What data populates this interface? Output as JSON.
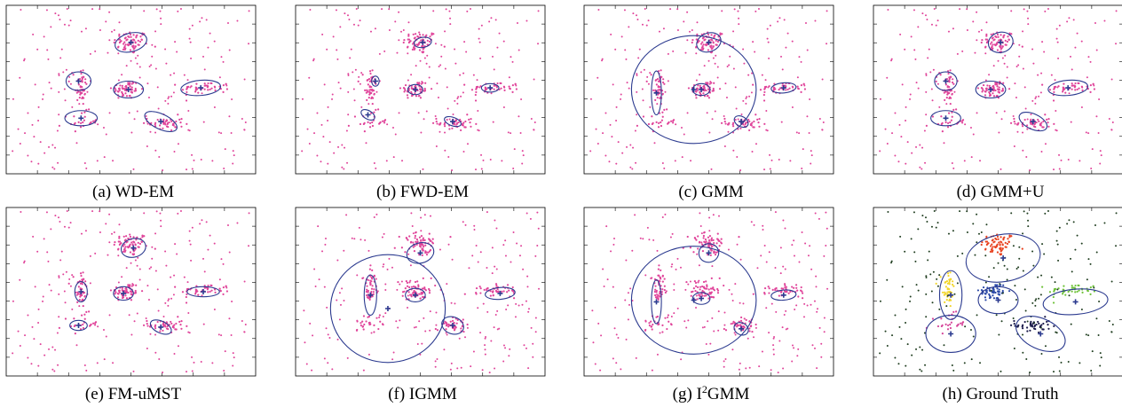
{
  "figure": {
    "captions": [
      "(a) WD-EM",
      "(b) FWD-EM",
      "(c) GMM",
      "(d) GMM+U",
      "(e) FM-uMST",
      "(f) IGMM",
      "(g) I2GMM",
      "(h) Ground Truth"
    ]
  },
  "colors": {
    "points": "#e0449a",
    "ellipse": "#2b3a8f",
    "center": "#2b3a8f",
    "frame": "#000000",
    "gt_noise": "#1f3d1f",
    "gt_red": "#e8411e",
    "gt_yellow": "#f2d52a",
    "gt_magenta": "#d6479a",
    "gt_blue": "#2c4aa8",
    "gt_green": "#6fc23a",
    "gt_navy": "#1a1a4a"
  },
  "chart_data": [
    {
      "type": "scatter",
      "caption": "(a) WD-EM",
      "xlim": [
        0,
        1
      ],
      "ylim": [
        0,
        1
      ],
      "clusters": [
        {
          "cx": 0.5,
          "cy": 0.78,
          "rx": 0.065,
          "ry": 0.055,
          "angle": -15
        },
        {
          "cx": 0.29,
          "cy": 0.55,
          "rx": 0.05,
          "ry": 0.055,
          "angle": 0
        },
        {
          "cx": 0.49,
          "cy": 0.5,
          "rx": 0.06,
          "ry": 0.05,
          "angle": 0
        },
        {
          "cx": 0.78,
          "cy": 0.51,
          "rx": 0.08,
          "ry": 0.045,
          "angle": -5
        },
        {
          "cx": 0.3,
          "cy": 0.33,
          "rx": 0.065,
          "ry": 0.045,
          "angle": 0
        },
        {
          "cx": 0.62,
          "cy": 0.31,
          "rx": 0.07,
          "ry": 0.045,
          "angle": 25
        }
      ]
    },
    {
      "type": "scatter",
      "caption": "(b) FWD-EM",
      "xlim": [
        0,
        1
      ],
      "ylim": [
        0,
        1
      ],
      "clusters": [
        {
          "cx": 0.51,
          "cy": 0.78,
          "rx": 0.035,
          "ry": 0.03,
          "angle": -10
        },
        {
          "cx": 0.32,
          "cy": 0.55,
          "rx": 0.015,
          "ry": 0.03,
          "angle": 0
        },
        {
          "cx": 0.48,
          "cy": 0.5,
          "rx": 0.03,
          "ry": 0.03,
          "angle": 0
        },
        {
          "cx": 0.78,
          "cy": 0.51,
          "rx": 0.035,
          "ry": 0.025,
          "angle": 0
        },
        {
          "cx": 0.29,
          "cy": 0.35,
          "rx": 0.03,
          "ry": 0.025,
          "angle": 30
        },
        {
          "cx": 0.63,
          "cy": 0.31,
          "rx": 0.035,
          "ry": 0.025,
          "angle": 20
        }
      ]
    },
    {
      "type": "scatter",
      "caption": "(c) GMM",
      "xlim": [
        0,
        1
      ],
      "ylim": [
        0,
        1
      ],
      "clusters": [
        {
          "cx": 0.5,
          "cy": 0.78,
          "rx": 0.05,
          "ry": 0.055,
          "angle": -20
        },
        {
          "cx": 0.44,
          "cy": 0.5,
          "rx": 0.25,
          "ry": 0.32,
          "angle": 0
        },
        {
          "cx": 0.29,
          "cy": 0.48,
          "rx": 0.02,
          "ry": 0.13,
          "angle": 0
        },
        {
          "cx": 0.47,
          "cy": 0.5,
          "rx": 0.035,
          "ry": 0.035,
          "angle": 0
        },
        {
          "cx": 0.8,
          "cy": 0.51,
          "rx": 0.05,
          "ry": 0.03,
          "angle": -5
        },
        {
          "cx": 0.63,
          "cy": 0.31,
          "rx": 0.03,
          "ry": 0.03,
          "angle": 30
        }
      ]
    },
    {
      "type": "scatter",
      "caption": "(d) GMM+U",
      "xlim": [
        0,
        1
      ],
      "ylim": [
        0,
        1
      ],
      "clusters": [
        {
          "cx": 0.51,
          "cy": 0.78,
          "rx": 0.05,
          "ry": 0.06,
          "angle": -15
        },
        {
          "cx": 0.29,
          "cy": 0.55,
          "rx": 0.045,
          "ry": 0.055,
          "angle": 0
        },
        {
          "cx": 0.47,
          "cy": 0.5,
          "rx": 0.06,
          "ry": 0.05,
          "angle": 0
        },
        {
          "cx": 0.78,
          "cy": 0.51,
          "rx": 0.08,
          "ry": 0.045,
          "angle": -5
        },
        {
          "cx": 0.29,
          "cy": 0.33,
          "rx": 0.06,
          "ry": 0.045,
          "angle": 0
        },
        {
          "cx": 0.64,
          "cy": 0.31,
          "rx": 0.06,
          "ry": 0.045,
          "angle": 25
        }
      ]
    },
    {
      "type": "scatter",
      "caption": "(e) FM-uMST",
      "xlim": [
        0,
        1
      ],
      "ylim": [
        0,
        1
      ],
      "clusters": [
        {
          "cx": 0.51,
          "cy": 0.76,
          "rx": 0.05,
          "ry": 0.055,
          "angle": -15
        },
        {
          "cx": 0.3,
          "cy": 0.5,
          "rx": 0.025,
          "ry": 0.06,
          "angle": 0
        },
        {
          "cx": 0.47,
          "cy": 0.49,
          "rx": 0.04,
          "ry": 0.04,
          "angle": 0
        },
        {
          "cx": 0.79,
          "cy": 0.5,
          "rx": 0.065,
          "ry": 0.03,
          "angle": 0
        },
        {
          "cx": 0.29,
          "cy": 0.3,
          "rx": 0.035,
          "ry": 0.03,
          "angle": 0
        },
        {
          "cx": 0.62,
          "cy": 0.29,
          "rx": 0.045,
          "ry": 0.035,
          "angle": 25
        }
      ]
    },
    {
      "type": "scatter",
      "caption": "(f) IGMM",
      "xlim": [
        0,
        1
      ],
      "ylim": [
        0,
        1
      ],
      "clusters": [
        {
          "cx": 0.5,
          "cy": 0.73,
          "rx": 0.055,
          "ry": 0.06,
          "angle": -15
        },
        {
          "cx": 0.37,
          "cy": 0.4,
          "rx": 0.23,
          "ry": 0.32,
          "angle": 0
        },
        {
          "cx": 0.3,
          "cy": 0.48,
          "rx": 0.025,
          "ry": 0.12,
          "angle": 0
        },
        {
          "cx": 0.48,
          "cy": 0.48,
          "rx": 0.04,
          "ry": 0.04,
          "angle": 0
        },
        {
          "cx": 0.82,
          "cy": 0.49,
          "rx": 0.06,
          "ry": 0.035,
          "angle": -5
        },
        {
          "cx": 0.63,
          "cy": 0.3,
          "rx": 0.045,
          "ry": 0.05,
          "angle": 20
        }
      ]
    },
    {
      "type": "scatter",
      "caption": "(g) I2GMM",
      "xlim": [
        0,
        1
      ],
      "ylim": [
        0,
        1
      ],
      "clusters": [
        {
          "cx": 0.5,
          "cy": 0.73,
          "rx": 0.04,
          "ry": 0.055,
          "angle": -15
        },
        {
          "cx": 0.44,
          "cy": 0.45,
          "rx": 0.25,
          "ry": 0.32,
          "angle": 0
        },
        {
          "cx": 0.29,
          "cy": 0.44,
          "rx": 0.02,
          "ry": 0.13,
          "angle": 0
        },
        {
          "cx": 0.47,
          "cy": 0.46,
          "rx": 0.035,
          "ry": 0.035,
          "angle": 0
        },
        {
          "cx": 0.8,
          "cy": 0.48,
          "rx": 0.05,
          "ry": 0.03,
          "angle": -5
        },
        {
          "cx": 0.63,
          "cy": 0.28,
          "rx": 0.03,
          "ry": 0.035,
          "angle": 30
        }
      ]
    },
    {
      "type": "scatter",
      "caption": "(h) Ground Truth",
      "xlim": [
        0,
        1
      ],
      "ylim": [
        0,
        1
      ],
      "clusters": [
        {
          "cx": 0.52,
          "cy": 0.7,
          "rx": 0.15,
          "ry": 0.14,
          "angle": -10,
          "color_key": "gt_red"
        },
        {
          "cx": 0.31,
          "cy": 0.48,
          "rx": 0.045,
          "ry": 0.145,
          "angle": 0,
          "color_key": "gt_yellow"
        },
        {
          "cx": 0.31,
          "cy": 0.25,
          "rx": 0.1,
          "ry": 0.11,
          "angle": 0,
          "color_key": "gt_magenta"
        },
        {
          "cx": 0.5,
          "cy": 0.45,
          "rx": 0.08,
          "ry": 0.08,
          "angle": 0,
          "color_key": "gt_blue"
        },
        {
          "cx": 0.81,
          "cy": 0.44,
          "rx": 0.13,
          "ry": 0.075,
          "angle": -5,
          "color_key": "gt_green"
        },
        {
          "cx": 0.67,
          "cy": 0.25,
          "rx": 0.105,
          "ry": 0.09,
          "angle": 25,
          "color_key": "gt_navy"
        }
      ]
    }
  ]
}
